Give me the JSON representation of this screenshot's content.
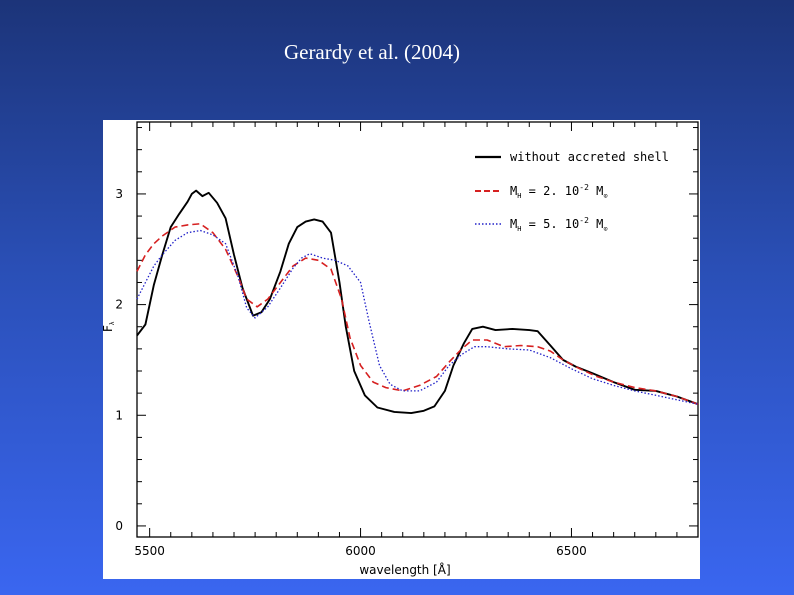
{
  "slide": {
    "title": "Gerardy et al. (2004)"
  },
  "chart_data": {
    "type": "line",
    "title": "",
    "xlabel": "wavelength [Å]",
    "ylabel": "Fλ",
    "xlim": [
      5470,
      6800
    ],
    "ylim": [
      -0.1,
      3.65
    ],
    "x_ticks": [
      5500,
      6000,
      6500
    ],
    "y_ticks": [
      0,
      1,
      2,
      3
    ],
    "x_minor_step": 50,
    "y_minor_step": 0.2,
    "grid": false,
    "legend_position": "top-right",
    "series": [
      {
        "name": "without accreted shell",
        "color": "#000000",
        "style": "solid",
        "points": [
          [
            5470,
            1.72
          ],
          [
            5490,
            1.82
          ],
          [
            5510,
            2.18
          ],
          [
            5530,
            2.45
          ],
          [
            5550,
            2.7
          ],
          [
            5570,
            2.82
          ],
          [
            5590,
            2.93
          ],
          [
            5600,
            3.0
          ],
          [
            5610,
            3.03
          ],
          [
            5625,
            2.98
          ],
          [
            5640,
            3.01
          ],
          [
            5660,
            2.92
          ],
          [
            5680,
            2.78
          ],
          [
            5700,
            2.45
          ],
          [
            5720,
            2.15
          ],
          [
            5745,
            1.9
          ],
          [
            5765,
            1.93
          ],
          [
            5785,
            2.05
          ],
          [
            5810,
            2.3
          ],
          [
            5830,
            2.55
          ],
          [
            5850,
            2.7
          ],
          [
            5870,
            2.75
          ],
          [
            5890,
            2.77
          ],
          [
            5910,
            2.75
          ],
          [
            5930,
            2.65
          ],
          [
            5950,
            2.2
          ],
          [
            5965,
            1.8
          ],
          [
            5985,
            1.4
          ],
          [
            6010,
            1.18
          ],
          [
            6040,
            1.07
          ],
          [
            6080,
            1.03
          ],
          [
            6120,
            1.02
          ],
          [
            6150,
            1.04
          ],
          [
            6175,
            1.08
          ],
          [
            6200,
            1.22
          ],
          [
            6220,
            1.45
          ],
          [
            6245,
            1.65
          ],
          [
            6265,
            1.78
          ],
          [
            6290,
            1.8
          ],
          [
            6320,
            1.77
          ],
          [
            6360,
            1.78
          ],
          [
            6400,
            1.77
          ],
          [
            6420,
            1.76
          ],
          [
            6450,
            1.63
          ],
          [
            6480,
            1.5
          ],
          [
            6510,
            1.44
          ],
          [
            6550,
            1.38
          ],
          [
            6600,
            1.3
          ],
          [
            6650,
            1.23
          ],
          [
            6700,
            1.22
          ],
          [
            6750,
            1.17
          ],
          [
            6800,
            1.1
          ]
        ]
      },
      {
        "name": "M_H = 2. 10^-2 M_⊙",
        "color": "#d62020",
        "style": "dashed",
        "points": [
          [
            5470,
            2.3
          ],
          [
            5490,
            2.45
          ],
          [
            5510,
            2.55
          ],
          [
            5530,
            2.62
          ],
          [
            5560,
            2.7
          ],
          [
            5590,
            2.72
          ],
          [
            5620,
            2.73
          ],
          [
            5650,
            2.65
          ],
          [
            5680,
            2.5
          ],
          [
            5710,
            2.25
          ],
          [
            5730,
            2.05
          ],
          [
            5755,
            1.98
          ],
          [
            5780,
            2.05
          ],
          [
            5810,
            2.2
          ],
          [
            5840,
            2.35
          ],
          [
            5870,
            2.42
          ],
          [
            5900,
            2.4
          ],
          [
            5930,
            2.32
          ],
          [
            5955,
            2.05
          ],
          [
            5975,
            1.7
          ],
          [
            6000,
            1.45
          ],
          [
            6030,
            1.3
          ],
          [
            6060,
            1.25
          ],
          [
            6100,
            1.22
          ],
          [
            6140,
            1.27
          ],
          [
            6180,
            1.35
          ],
          [
            6210,
            1.48
          ],
          [
            6240,
            1.6
          ],
          [
            6265,
            1.68
          ],
          [
            6300,
            1.68
          ],
          [
            6340,
            1.62
          ],
          [
            6380,
            1.63
          ],
          [
            6420,
            1.62
          ],
          [
            6450,
            1.58
          ],
          [
            6480,
            1.5
          ],
          [
            6520,
            1.42
          ],
          [
            6560,
            1.35
          ],
          [
            6600,
            1.3
          ],
          [
            6650,
            1.25
          ],
          [
            6700,
            1.22
          ],
          [
            6750,
            1.17
          ],
          [
            6800,
            1.1
          ]
        ]
      },
      {
        "name": "M_H = 5. 10^-2 M_⊙",
        "color": "#2020c8",
        "style": "dotted",
        "points": [
          [
            5470,
            2.05
          ],
          [
            5490,
            2.2
          ],
          [
            5510,
            2.35
          ],
          [
            5530,
            2.45
          ],
          [
            5560,
            2.58
          ],
          [
            5590,
            2.65
          ],
          [
            5620,
            2.67
          ],
          [
            5650,
            2.63
          ],
          [
            5680,
            2.55
          ],
          [
            5710,
            2.25
          ],
          [
            5730,
            1.97
          ],
          [
            5750,
            1.88
          ],
          [
            5780,
            1.98
          ],
          [
            5810,
            2.15
          ],
          [
            5840,
            2.33
          ],
          [
            5860,
            2.42
          ],
          [
            5880,
            2.46
          ],
          [
            5910,
            2.42
          ],
          [
            5940,
            2.4
          ],
          [
            5970,
            2.35
          ],
          [
            6000,
            2.2
          ],
          [
            6020,
            1.85
          ],
          [
            6045,
            1.45
          ],
          [
            6070,
            1.28
          ],
          [
            6100,
            1.22
          ],
          [
            6140,
            1.22
          ],
          [
            6180,
            1.3
          ],
          [
            6210,
            1.45
          ],
          [
            6240,
            1.55
          ],
          [
            6270,
            1.62
          ],
          [
            6300,
            1.62
          ],
          [
            6350,
            1.6
          ],
          [
            6400,
            1.59
          ],
          [
            6450,
            1.52
          ],
          [
            6500,
            1.42
          ],
          [
            6550,
            1.33
          ],
          [
            6600,
            1.27
          ],
          [
            6650,
            1.22
          ],
          [
            6700,
            1.18
          ],
          [
            6750,
            1.14
          ],
          [
            6800,
            1.1
          ]
        ]
      }
    ],
    "legend": [
      {
        "line": "without accreted shell"
      },
      {
        "prefix": "M",
        "sub": "H",
        "middle": " = 2. 10",
        "sup": "-2",
        "unit": " M",
        "unit_sub": "⊙"
      },
      {
        "prefix": "M",
        "sub": "H",
        "middle": " = 5. 10",
        "sup": "-2",
        "unit": " M",
        "unit_sub": "⊙"
      }
    ]
  }
}
